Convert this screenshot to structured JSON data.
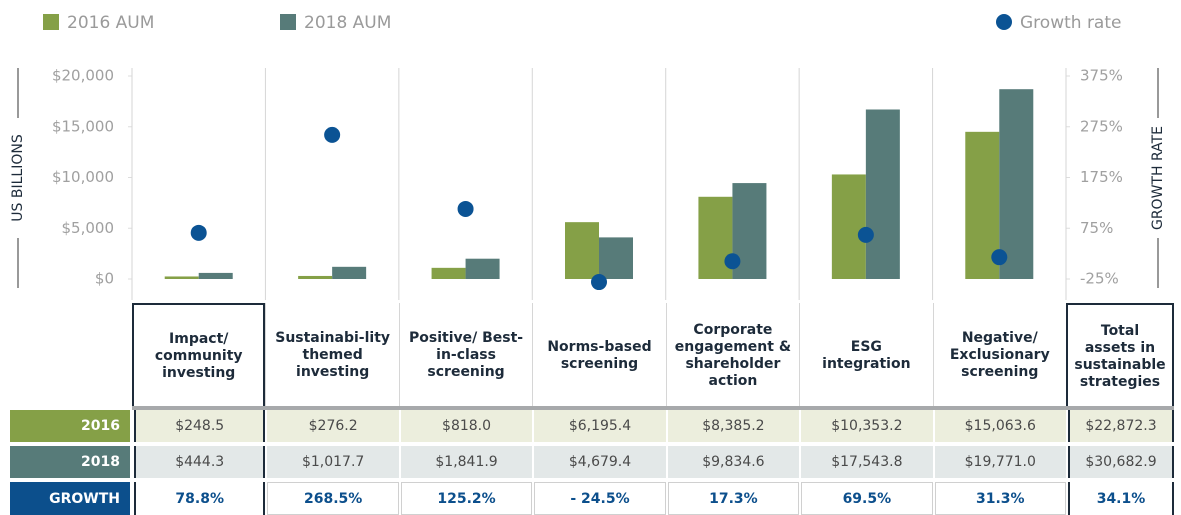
{
  "chart_data": {
    "type": "bar",
    "categories": [
      "Impact/ community investing",
      "Sustainabi-lity themed investing",
      "Positive/ Best-in-class screening",
      "Norms-based screening",
      "Corporate engagement & shareholder action",
      "ESG integration",
      "Negative/ Exclusionary screening"
    ],
    "series": [
      {
        "name": "2016 AUM",
        "color": "#85a047",
        "values": [
          250,
          300,
          1100,
          5600,
          8100,
          10300,
          14500
        ]
      },
      {
        "name": "2018 AUM",
        "color": "#577b79",
        "values": [
          600,
          1200,
          2000,
          4100,
          9450,
          16700,
          18700
        ]
      },
      {
        "name": "Growth rate",
        "color": "#0b5394",
        "type": "scatter",
        "axis": "y2",
        "values": [
          66,
          259,
          113,
          -31,
          10,
          62,
          18
        ]
      }
    ],
    "ylabel": "US BILLIONS",
    "y2label": "GROWTH RATE",
    "ylim": [
      0,
      20000
    ],
    "yticks": [
      {
        "value": 0,
        "label": "$0"
      },
      {
        "value": 5000,
        "label": "$5,000"
      },
      {
        "value": 10000,
        "label": "$10,000"
      },
      {
        "value": 15000,
        "label": "$15,000"
      },
      {
        "value": 20000,
        "label": "$20,000"
      }
    ],
    "y2lim": [
      -25,
      375
    ],
    "y2ticks": [
      {
        "value": -25,
        "label": "-25%"
      },
      {
        "value": 75,
        "label": "75%"
      },
      {
        "value": 175,
        "label": "175%"
      },
      {
        "value": 275,
        "label": "275%"
      },
      {
        "value": 375,
        "label": "375%"
      }
    ]
  },
  "table": {
    "total_header": "Total assets in sustainable strategies",
    "rows": [
      {
        "label": "2016",
        "cells": [
          "$248.5",
          "$276.2",
          "$818.0",
          "$6,195.4",
          "$8,385.2",
          "$10,353.2",
          "$15,063.6",
          "$22,872.3"
        ]
      },
      {
        "label": "2018",
        "cells": [
          "$444.3",
          "$1,017.7",
          "$1,841.9",
          "$4,679.4",
          "$9,834.6",
          "$17,543.8",
          "$19,771.0",
          "$30,682.9"
        ]
      },
      {
        "label": "GROWTH",
        "cells": [
          "78.8%",
          "268.5%",
          "125.2%",
          "- 24.5%",
          "17.3%",
          "69.5%",
          "31.3%",
          "34.1%"
        ]
      }
    ]
  }
}
